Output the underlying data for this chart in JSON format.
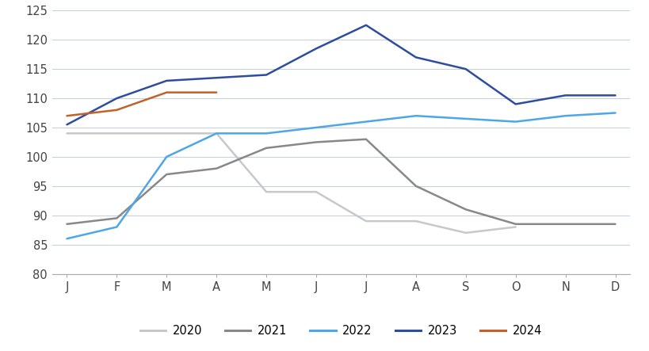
{
  "months": [
    "J",
    "F",
    "M",
    "A",
    "M",
    "J",
    "J",
    "A",
    "S",
    "O",
    "N",
    "D"
  ],
  "series": {
    "2020": [
      104,
      104,
      104,
      104,
      94,
      94,
      89,
      89,
      87,
      88,
      null,
      null
    ],
    "2021": [
      88.5,
      89.5,
      97,
      98,
      101.5,
      102.5,
      103,
      95,
      91,
      88.5,
      88.5,
      88.5
    ],
    "2022": [
      86,
      88,
      100,
      104,
      104,
      105,
      106,
      107,
      106.5,
      106,
      107,
      107.5
    ],
    "2023": [
      105.5,
      110,
      113,
      113.5,
      114,
      118.5,
      122.5,
      117,
      115,
      109,
      110.5,
      110.5
    ],
    "2024": [
      107,
      108,
      111,
      111,
      null,
      null,
      null,
      null,
      null,
      null,
      null,
      null
    ]
  },
  "colors": {
    "2020": "#c8c8c8",
    "2021": "#888888",
    "2022": "#4da6e8",
    "2023": "#2e4d9e",
    "2024": "#c0622a"
  },
  "ylim": [
    80,
    125
  ],
  "yticks": [
    80,
    85,
    90,
    95,
    100,
    105,
    110,
    115,
    120,
    125
  ],
  "linewidth": 1.8,
  "background_color": "#ffffff",
  "grid_color": "#c8d0d8"
}
